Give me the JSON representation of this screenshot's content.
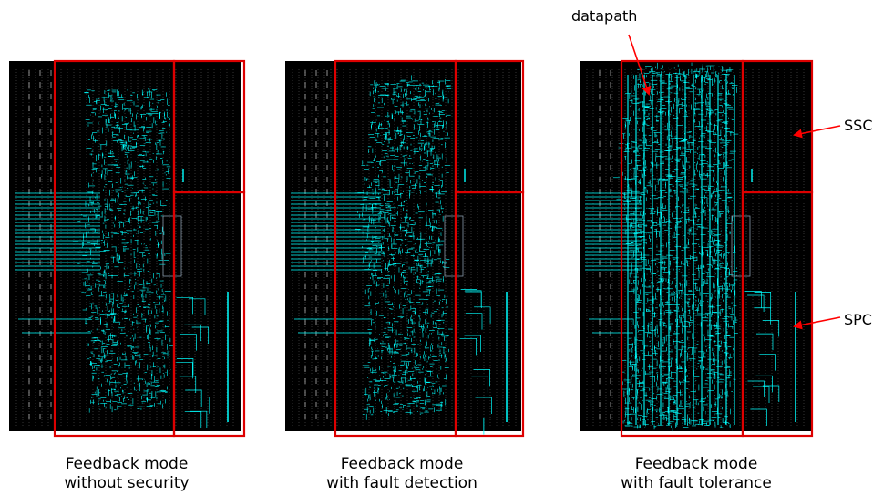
{
  "panels": [
    {
      "caption_line1": "Feedback mode",
      "caption_line2": "without security",
      "density": "low"
    },
    {
      "caption_line1": "Feedback mode",
      "caption_line2": "with fault detection",
      "density": "medium"
    },
    {
      "caption_line1": "Feedback mode",
      "caption_line2": "with fault tolerance",
      "density": "high"
    }
  ],
  "annotations": {
    "datapath": "datapath",
    "ssc": "SSC",
    "spc": "SPC"
  },
  "colors": {
    "background": "#000000",
    "routing": "#00ffff",
    "region_outline": "#dd0000",
    "arrow": "#ff0000",
    "grid_dots": "#bbbbbb"
  }
}
